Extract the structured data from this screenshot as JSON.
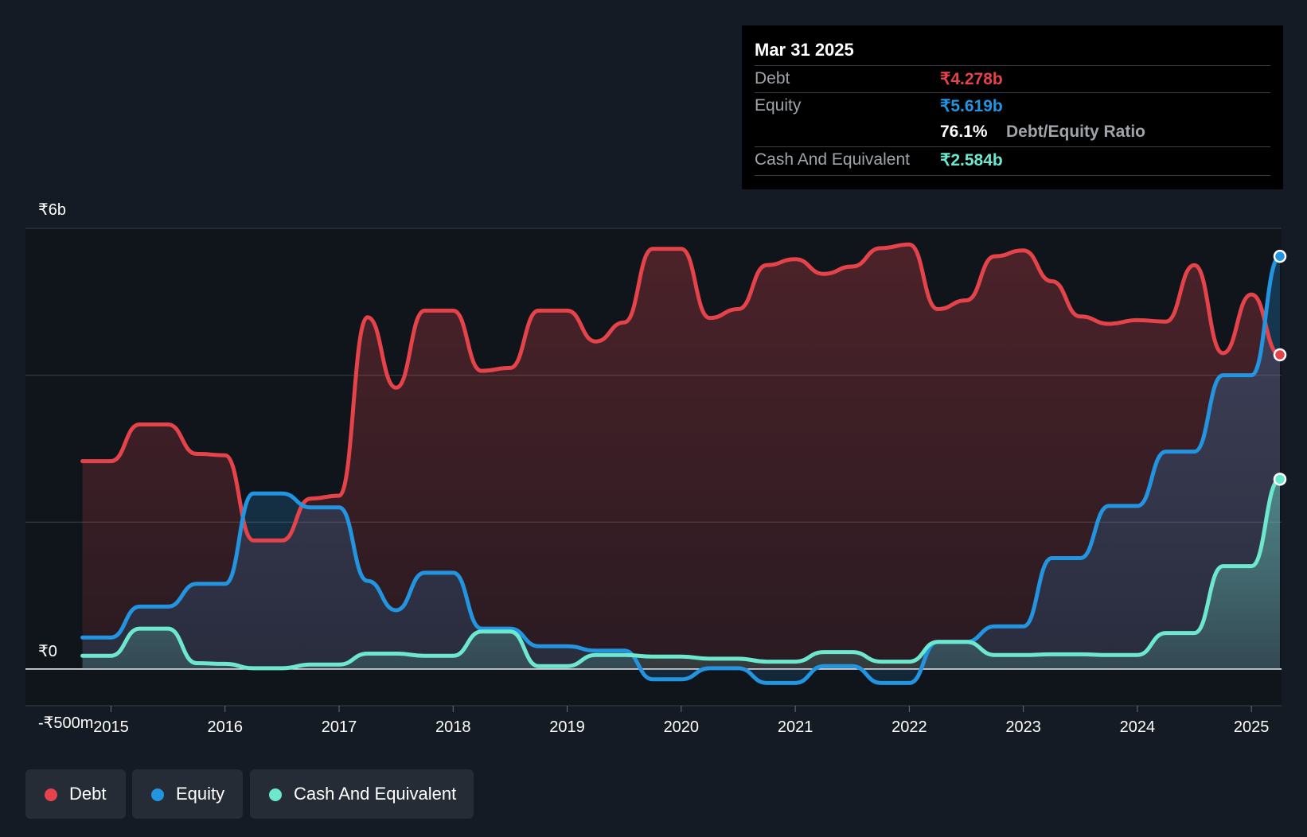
{
  "tooltip": {
    "date": "Mar 31 2025",
    "debt_label": "Debt",
    "debt_value": "₹4.278b",
    "equity_label": "Equity",
    "equity_value": "₹5.619b",
    "ratio_value": "76.1%",
    "ratio_label": "Debt/Equity Ratio",
    "cash_label": "Cash And Equivalent",
    "cash_value": "₹2.584b"
  },
  "legend": [
    {
      "label": "Debt",
      "color": "#e5434a"
    },
    {
      "label": "Equity",
      "color": "#2394df"
    },
    {
      "label": "Cash And Equivalent",
      "color": "#6ee7cf"
    }
  ],
  "chart_data": {
    "type": "line",
    "x_unit": "year",
    "xlim": [
      2014.25,
      2025.25
    ],
    "ylim": [
      -0.5,
      6
    ],
    "y_tick_labels": [
      {
        "value": 6,
        "label": "₹6b"
      },
      {
        "value": 0,
        "label": "₹0"
      },
      {
        "value": -0.5,
        "label": "-₹500m"
      }
    ],
    "gridlines": [
      6,
      4,
      2,
      0,
      -0.5
    ],
    "x_ticks": [
      2015,
      2016,
      2017,
      2018,
      2019,
      2020,
      2021,
      2022,
      2023,
      2024,
      2025
    ],
    "colors": {
      "debt": "#e5434a",
      "equity": "#2394df",
      "cash": "#6ee7cf"
    },
    "series": [
      {
        "name": "Debt",
        "key": "debt",
        "x": [
          2014.75,
          2015.0,
          2015.25,
          2015.5,
          2015.75,
          2016.0,
          2016.25,
          2016.5,
          2016.75,
          2017.0,
          2017.25,
          2017.5,
          2017.75,
          2018.0,
          2018.25,
          2018.5,
          2018.75,
          2019.0,
          2019.25,
          2019.5,
          2019.75,
          2020.0,
          2020.25,
          2020.5,
          2020.75,
          2021.0,
          2021.25,
          2021.5,
          2021.75,
          2022.0,
          2022.25,
          2022.5,
          2022.75,
          2023.0,
          2023.25,
          2023.5,
          2023.75,
          2024.0,
          2024.25,
          2024.5,
          2024.75,
          2025.0,
          2025.25
        ],
        "values": [
          2.83,
          2.83,
          3.33,
          3.33,
          2.93,
          2.91,
          1.75,
          1.75,
          2.32,
          2.36,
          4.79,
          3.83,
          4.88,
          4.88,
          4.06,
          4.1,
          4.88,
          4.88,
          4.46,
          4.72,
          5.72,
          5.72,
          4.78,
          4.9,
          5.5,
          5.58,
          5.38,
          5.48,
          5.73,
          5.78,
          4.9,
          5.02,
          5.62,
          5.7,
          5.28,
          4.8,
          4.7,
          4.75,
          4.73,
          5.5,
          4.3,
          5.1,
          4.278
        ]
      },
      {
        "name": "Equity",
        "key": "equity",
        "x": [
          2014.75,
          2015.0,
          2015.25,
          2015.5,
          2015.75,
          2016.0,
          2016.25,
          2016.5,
          2016.75,
          2017.0,
          2017.25,
          2017.5,
          2017.75,
          2018.0,
          2018.25,
          2018.5,
          2018.75,
          2019.0,
          2019.25,
          2019.5,
          2019.75,
          2020.0,
          2020.25,
          2020.5,
          2020.75,
          2021.0,
          2021.25,
          2021.5,
          2021.75,
          2022.0,
          2022.25,
          2022.5,
          2022.75,
          2023.0,
          2023.25,
          2023.5,
          2023.75,
          2024.0,
          2024.25,
          2024.5,
          2024.75,
          2025.0,
          2025.25
        ],
        "values": [
          0.43,
          0.43,
          0.85,
          0.85,
          1.16,
          1.16,
          2.39,
          2.39,
          2.2,
          2.2,
          1.2,
          0.8,
          1.31,
          1.31,
          0.55,
          0.55,
          0.31,
          0.31,
          0.25,
          0.25,
          -0.14,
          -0.14,
          0.01,
          0.01,
          -0.19,
          -0.19,
          0.04,
          0.04,
          -0.19,
          -0.19,
          0.37,
          0.37,
          0.58,
          0.58,
          1.51,
          1.51,
          2.22,
          2.22,
          2.96,
          2.96,
          4.0,
          4.0,
          5.619
        ]
      },
      {
        "name": "Cash And Equivalent",
        "key": "cash",
        "x": [
          2014.75,
          2015.0,
          2015.25,
          2015.5,
          2015.75,
          2016.0,
          2016.25,
          2016.5,
          2016.75,
          2017.0,
          2017.25,
          2017.5,
          2017.75,
          2018.0,
          2018.25,
          2018.5,
          2018.75,
          2019.0,
          2019.25,
          2019.5,
          2019.75,
          2020.0,
          2020.25,
          2020.5,
          2020.75,
          2021.0,
          2021.25,
          2021.5,
          2021.75,
          2022.0,
          2022.25,
          2022.5,
          2022.75,
          2023.0,
          2023.25,
          2023.5,
          2023.75,
          2024.0,
          2024.25,
          2024.5,
          2024.75,
          2025.0,
          2025.25
        ],
        "values": [
          0.18,
          0.18,
          0.55,
          0.55,
          0.08,
          0.07,
          0.01,
          0.01,
          0.06,
          0.06,
          0.21,
          0.21,
          0.18,
          0.18,
          0.51,
          0.51,
          0.04,
          0.04,
          0.19,
          0.19,
          0.17,
          0.17,
          0.14,
          0.14,
          0.1,
          0.1,
          0.23,
          0.23,
          0.1,
          0.1,
          0.37,
          0.37,
          0.19,
          0.19,
          0.2,
          0.2,
          0.19,
          0.19,
          0.49,
          0.49,
          1.4,
          1.4,
          2.584
        ]
      }
    ]
  }
}
